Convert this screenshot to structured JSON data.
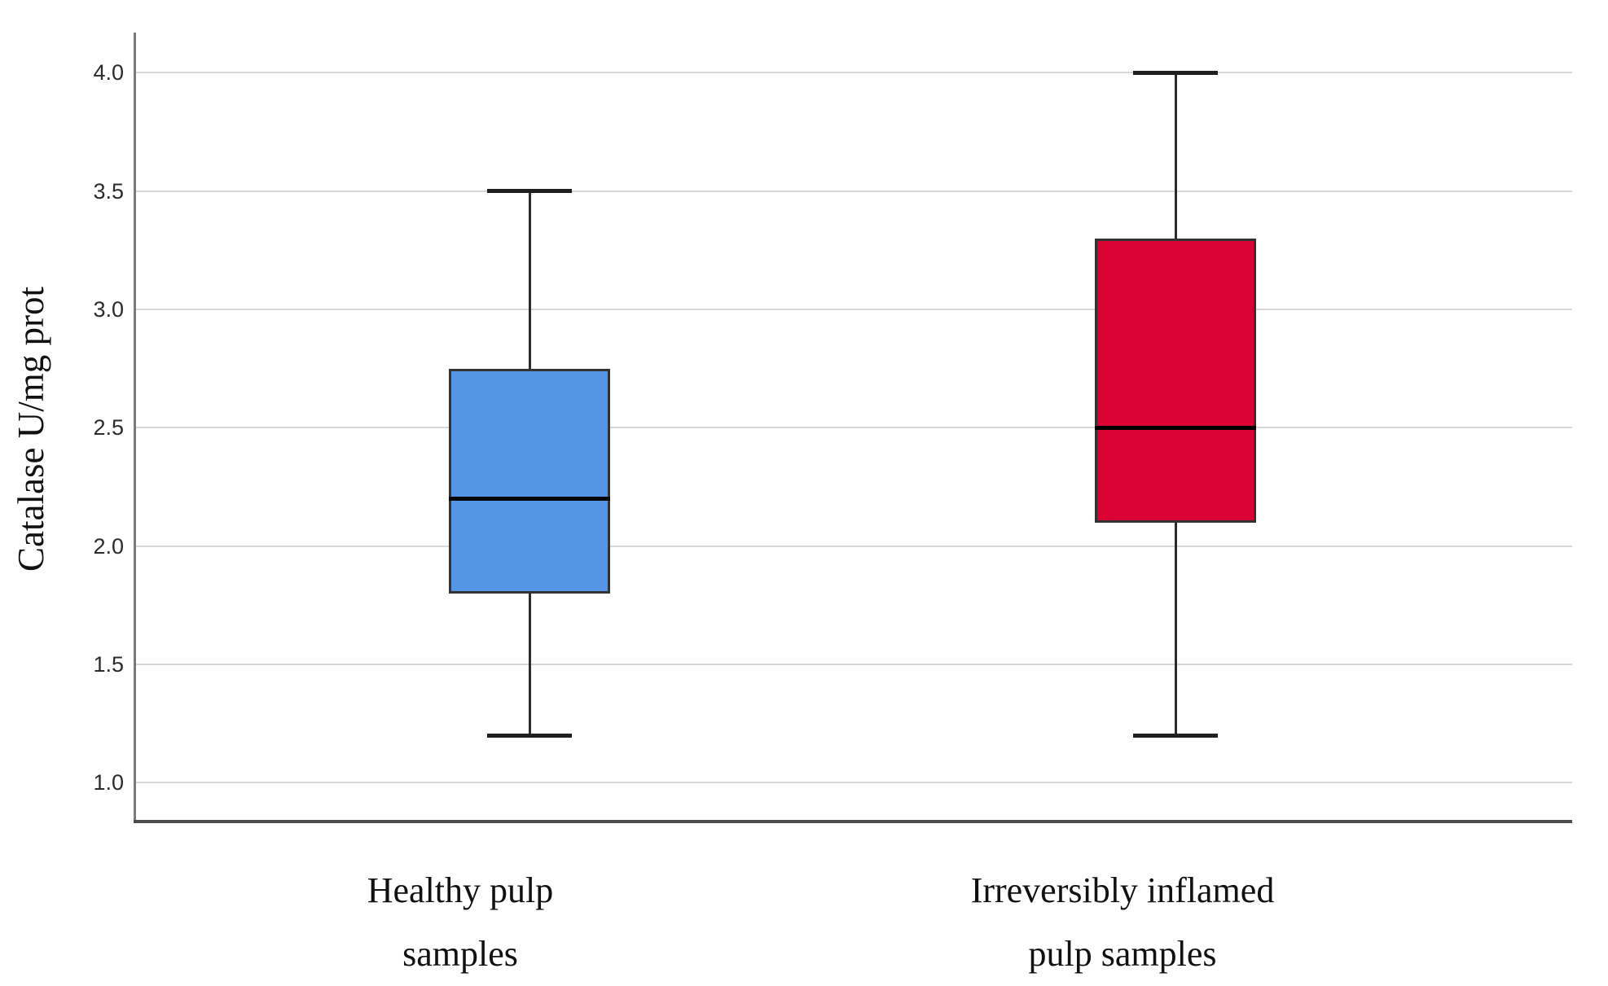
{
  "figure": {
    "background": "#ffffff"
  },
  "chart_data": {
    "type": "boxplot",
    "title": "",
    "xlabel": "",
    "ylabel": "Catalase U/mg prot",
    "ylim": [
      0.84,
      4.17
    ],
    "yticks": [
      4.0,
      3.5,
      3.0,
      2.5,
      2.0,
      1.5,
      1.0
    ],
    "ytick_labels": [
      "4.0",
      "3.5",
      "3.0",
      "2.5",
      "2.0",
      "1.5",
      "1.0"
    ],
    "grid": true,
    "legend": "none",
    "categories": [
      {
        "label_lines": [
          "Healthy pulp",
          "samples"
        ]
      },
      {
        "label_lines": [
          "Irreversibly inflamed",
          "pulp samples"
        ]
      }
    ],
    "series": [
      {
        "name": "Healthy pulp samples",
        "color": "#5595e5",
        "whisker_low": 1.2,
        "q1": 1.8,
        "median": 2.2,
        "q3": 2.75,
        "whisker_high": 3.5
      },
      {
        "name": "Irreversibly inflamed pulp samples",
        "color": "#d90232",
        "whisker_low": 1.2,
        "q1": 2.1,
        "median": 2.5,
        "q3": 3.3,
        "whisker_high": 4.0
      }
    ],
    "colors": {
      "gridline": "#d8d8d8",
      "box_border": "#333333",
      "median_line": "#000000",
      "whisker": "#2b2b2b",
      "axis_line": "#4d4d4d"
    }
  }
}
